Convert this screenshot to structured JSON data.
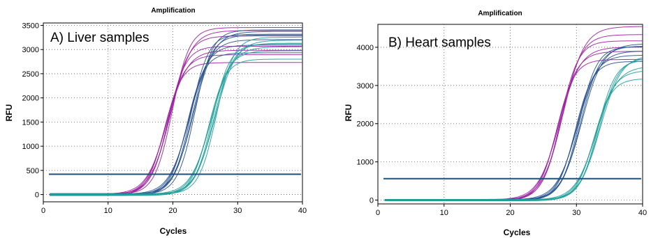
{
  "chart_data": [
    {
      "type": "line",
      "title": "Amplification",
      "annotation": "A) Liver samples",
      "xlabel": "Cycles",
      "ylabel": "RFU",
      "xlim": [
        0,
        40
      ],
      "ylim": [
        -150,
        3550
      ],
      "xticks": [
        0,
        10,
        20,
        30,
        40
      ],
      "yticks": [
        0,
        500,
        1000,
        1500,
        2000,
        2500,
        3000,
        3500
      ],
      "grid": true,
      "threshold": 420,
      "series": [
        {
          "color": "#9b1fa0",
          "ct": [
            18.7,
            18.9,
            19.1,
            19.3,
            19.5,
            19.7,
            19.9
          ],
          "plateau": [
            2750,
            2900,
            2980,
            3050,
            3300,
            3400,
            3450
          ]
        },
        {
          "color": "#27508f",
          "ct": [
            22.2,
            22.4,
            22.6,
            22.8,
            23.0,
            23.2,
            23.4
          ],
          "plateau": [
            2950,
            3100,
            3200,
            3300,
            3320,
            3380,
            3400
          ]
        },
        {
          "color": "#1e9e9a",
          "ct": [
            25.5,
            25.7,
            25.9,
            26.1,
            26.3,
            26.5,
            26.7
          ],
          "plateau": [
            2820,
            2980,
            3050,
            3100,
            3150,
            3200,
            3250
          ]
        }
      ]
    },
    {
      "type": "line",
      "title": "Amplification",
      "annotation": "B) Heart samples",
      "xlabel": "Cycles",
      "ylabel": "RFU",
      "xlim": [
        0,
        40
      ],
      "ylim": [
        -100,
        4600
      ],
      "xticks": [
        0,
        10,
        20,
        30,
        40
      ],
      "yticks": [
        0,
        1000,
        2000,
        3000,
        4000
      ],
      "grid": true,
      "threshold": 560,
      "series": [
        {
          "color": "#9b1fa0",
          "ct": [
            27.0,
            27.2,
            27.4,
            27.6,
            27.8,
            28.0
          ],
          "plateau": [
            3700,
            3900,
            4000,
            4150,
            4350,
            4550
          ]
        },
        {
          "color": "#27508f",
          "ct": [
            29.8,
            30.0,
            30.2,
            30.4,
            30.6,
            30.8
          ],
          "plateau": [
            3650,
            3800,
            3900,
            4000,
            4050,
            4100
          ]
        },
        {
          "color": "#1e9e9a",
          "ct": [
            32.6,
            32.8,
            33.0,
            33.2,
            33.4,
            33.6
          ],
          "plateau": [
            3200,
            3400,
            3500,
            3650,
            3750,
            3800
          ]
        }
      ]
    }
  ]
}
